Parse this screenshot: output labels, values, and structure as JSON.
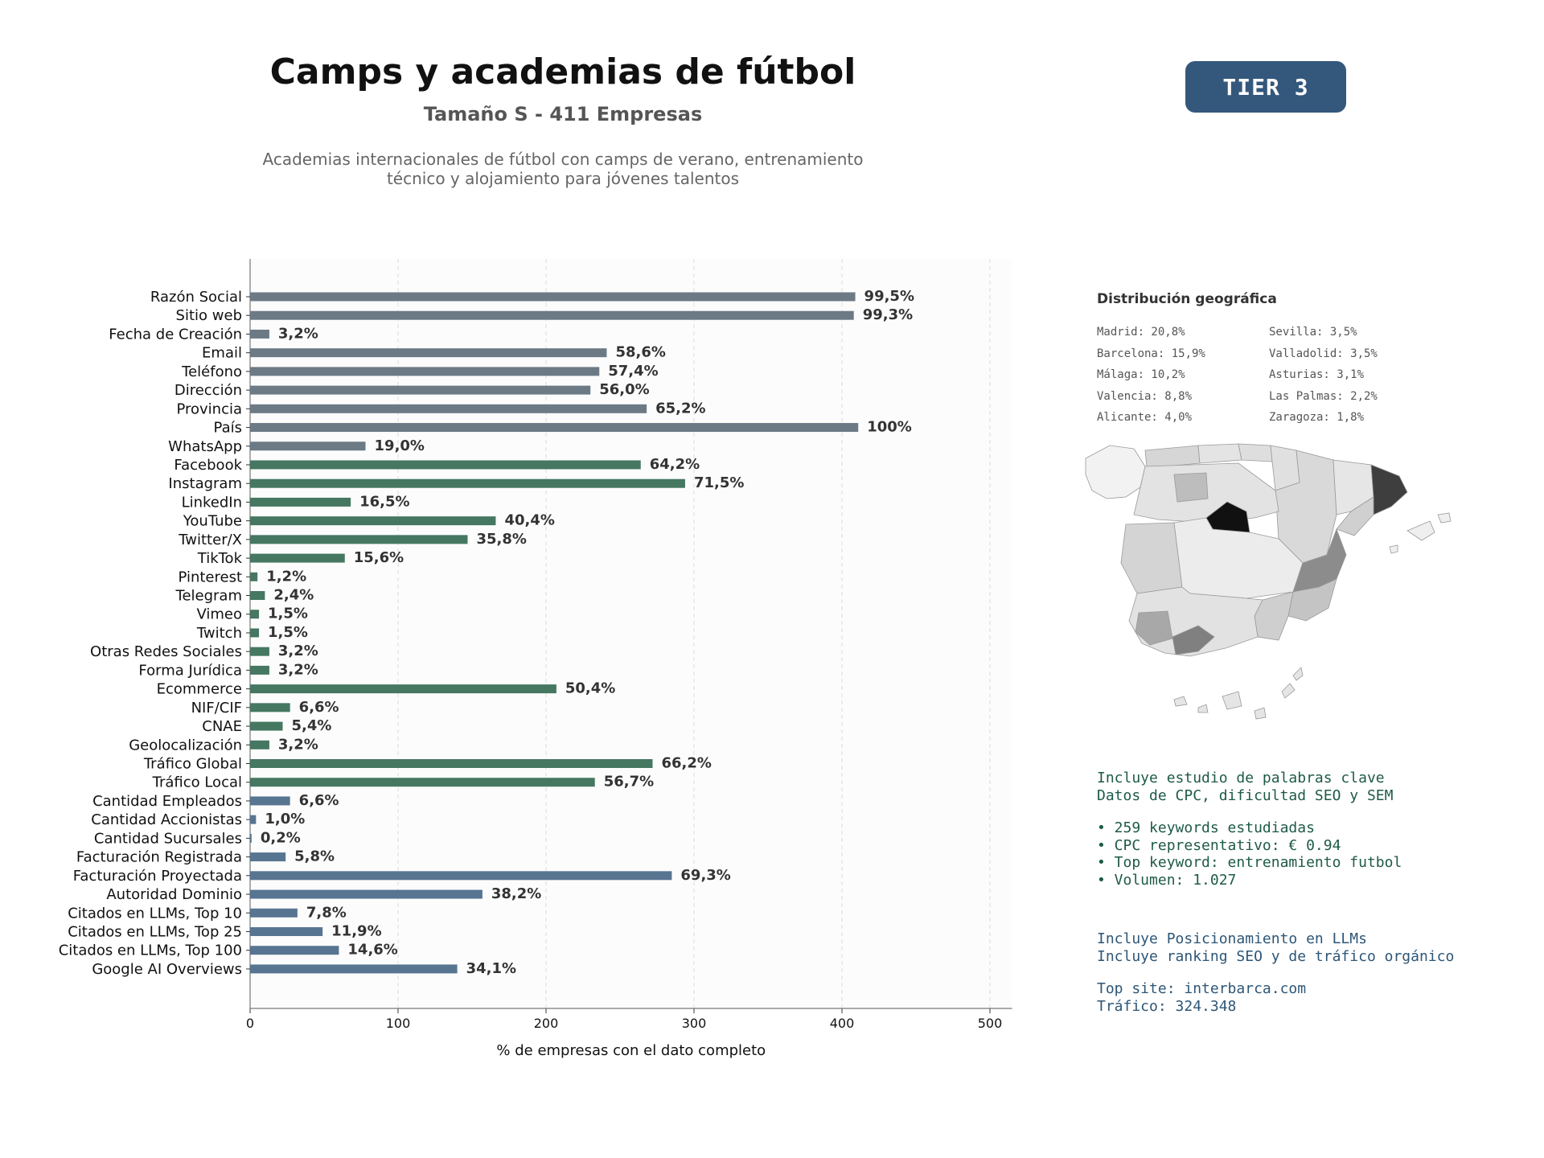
{
  "header": {
    "title": "Camps y academias de fútbol",
    "subtitle": "Tamaño S - 411 Empresas",
    "description_line1": "Academias internacionales de fútbol con camps de verano, entrenamiento",
    "description_line2": "técnico y alojamiento para jóvenes talentos",
    "tier": "TIER 3"
  },
  "chart_data": {
    "type": "bar",
    "orientation": "horizontal",
    "xlabel": "% de empresas con el dato completo",
    "xlim": [
      0,
      515
    ],
    "xticks": [
      0,
      100,
      200,
      300,
      400,
      500
    ],
    "grid": true,
    "categories": [
      "Razón Social",
      "Sitio web",
      "Fecha de Creación",
      "Email",
      "Teléfono",
      "Dirección",
      "Provincia",
      "País",
      "WhatsApp",
      "Facebook",
      "Instagram",
      "LinkedIn",
      "YouTube",
      "Twitter/X",
      "TikTok",
      "Pinterest",
      "Telegram",
      "Vimeo",
      "Twitch",
      "Otras Redes Sociales",
      "Forma Jurídica",
      "Ecommerce",
      "NIF/CIF",
      "CNAE",
      "Geolocalización",
      "Tráfico Global",
      "Tráfico Local",
      "Cantidad Empleados",
      "Cantidad Accionistas",
      "Cantidad Sucursales",
      "Facturación Registrada",
      "Facturación Proyectada",
      "Autoridad Dominio",
      "Citados en LLMs, Top 10",
      "Citados en LLMs, Top 25",
      "Citados en LLMs, Top 100",
      "Google AI Overviews"
    ],
    "values": [
      409,
      408,
      13,
      241,
      236,
      230,
      268,
      411,
      78,
      264,
      294,
      68,
      166,
      147,
      64,
      5,
      10,
      6,
      6,
      13,
      13,
      207,
      27,
      22,
      13,
      272,
      233,
      27,
      4,
      1,
      24,
      285,
      157,
      32,
      49,
      60,
      140
    ],
    "labels": [
      "99,5%",
      "99,3%",
      "3,2%",
      "58,6%",
      "57,4%",
      "56,0%",
      "65,2%",
      "100%",
      "19,0%",
      "64,2%",
      "71,5%",
      "16,5%",
      "40,4%",
      "35,8%",
      "15,6%",
      "1,2%",
      "2,4%",
      "1,5%",
      "1,5%",
      "3,2%",
      "3,2%",
      "50,4%",
      "6,6%",
      "5,4%",
      "3,2%",
      "66,2%",
      "56,7%",
      "6,6%",
      "1,0%",
      "0,2%",
      "5,8%",
      "69,3%",
      "38,2%",
      "7,8%",
      "11,9%",
      "14,6%",
      "34,1%"
    ],
    "bar_colors": [
      "#6c7a86",
      "#6c7a86",
      "#6c7a86",
      "#6c7a86",
      "#6c7a86",
      "#6c7a86",
      "#6c7a86",
      "#6c7a86",
      "#6c7a86",
      "#457761",
      "#457761",
      "#457761",
      "#457761",
      "#457761",
      "#457761",
      "#457761",
      "#457761",
      "#457761",
      "#457761",
      "#457761",
      "#457761",
      "#457761",
      "#457761",
      "#457761",
      "#457761",
      "#457761",
      "#457761",
      "#577591",
      "#577591",
      "#577591",
      "#577591",
      "#577591",
      "#577591",
      "#577591",
      "#577591",
      "#577591",
      "#577591"
    ]
  },
  "geo": {
    "title": "Distribución geográfica",
    "left": [
      "Madrid: 20,8%",
      "Barcelona: 15,9%",
      "Málaga: 10,2%",
      "Valencia: 8,8%",
      "Alicante: 4,0%"
    ],
    "right": [
      "Sevilla: 3,5%",
      "Valladolid: 3,5%",
      "Asturias: 3,1%",
      "Las Palmas: 2,2%",
      "Zaragoza: 1,8%"
    ]
  },
  "seo": {
    "line1": "Incluye estudio de palabras clave",
    "line2": "Datos de CPC, dificultad SEO y SEM",
    "bullet1": "• 259 keywords estudiadas",
    "bullet2": "• CPC representativo: € 0.94",
    "bullet3": "• Top keyword: entrenamiento futbol",
    "bullet4": "• Volumen: 1.027"
  },
  "llm": {
    "line1": "Incluye Posicionamiento en LLMs",
    "line2": "Incluye ranking SEO y de tráfico orgánico",
    "top_site": "Top site: interbarca.com",
    "traffic": "Tráfico: 324.348"
  },
  "colors": {
    "grey_bars": "#6c7a86",
    "green_bars": "#457761",
    "blue_bars": "#577591",
    "tier_badge": "#34587c",
    "seo_text": "#1e5a48",
    "llm_text": "#2d5677"
  }
}
